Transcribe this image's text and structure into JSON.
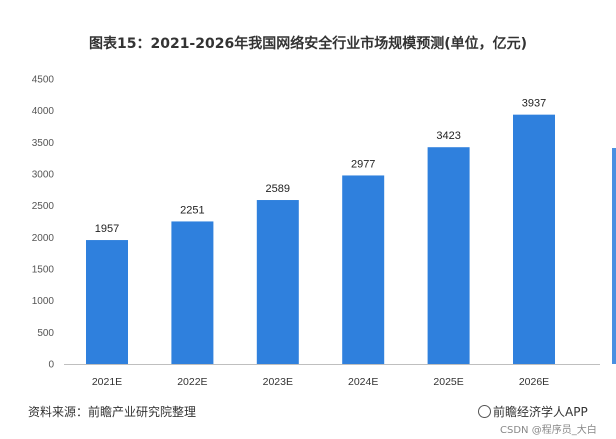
{
  "chart_data": {
    "type": "bar",
    "title": "图表15：2021-2026年我国网络安全行业市场规模预测(单位，亿元)",
    "categories": [
      "2021E",
      "2022E",
      "2023E",
      "2024E",
      "2025E",
      "2026E"
    ],
    "values": [
      1957,
      2251,
      2589,
      2977,
      3423,
      3937
    ],
    "ylim": [
      0,
      4500
    ],
    "yticks": [
      0,
      500,
      1000,
      1500,
      2000,
      2500,
      3000,
      3500,
      4000,
      4500
    ],
    "grid": false,
    "bar_color": "#2f80dd",
    "source": "资料来源：前瞻产业研究院整理",
    "brand": "前瞻经济学人APP",
    "watermark": "CSDN @程序员_大白"
  }
}
